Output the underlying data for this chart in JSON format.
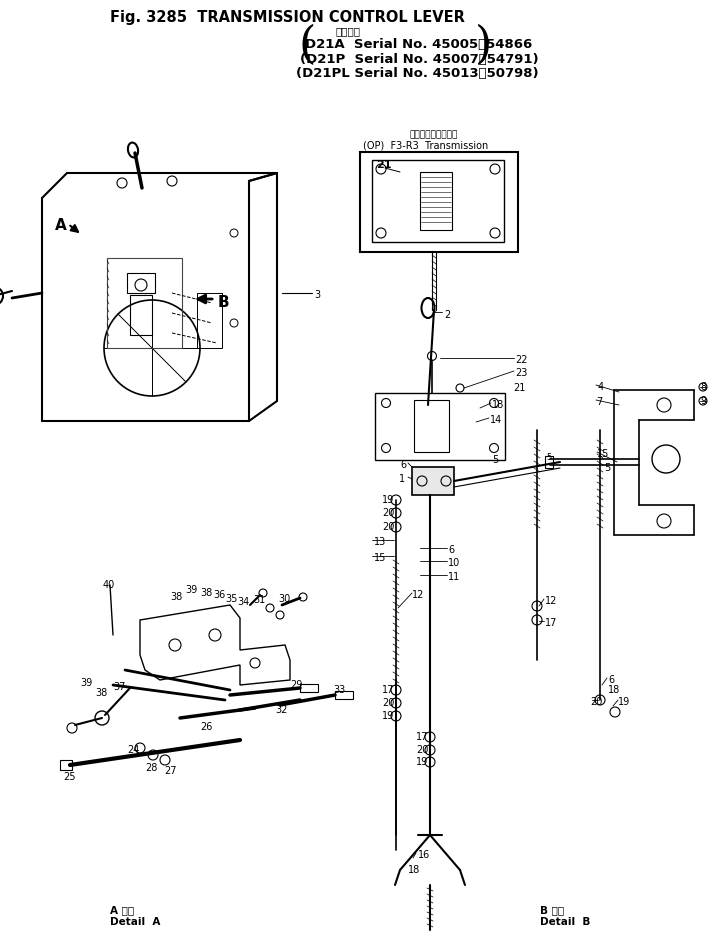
{
  "title": "Fig. 3285  TRANSMISSION CONTROL LEVER",
  "serial_head": "適用号機",
  "serial1": "D21A  Serial No. 45005～54866",
  "serial2": "(D21P  Serial No. 45007～54791)",
  "serial3": "(D21PL Serial No. 45013～50798)",
  "op_label_jp": "トランスミッション",
  "op_label": "(OP)  F3-R3  Transmission",
  "detail_a_jp": "A 詳細",
  "detail_a_en": "Detail  A",
  "detail_b_jp": "B 詳細",
  "detail_b_en": "Detail  B",
  "bg": "#ffffff",
  "lc": "#000000",
  "fig_width": 7.17,
  "fig_height": 9.4,
  "dpi": 100
}
